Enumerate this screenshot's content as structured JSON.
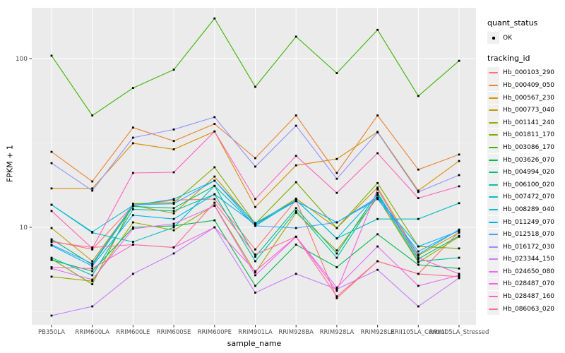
{
  "panel": {
    "background": "#EBEBEB",
    "gridline_color": "#FFFFFF",
    "tick_color": "#333333",
    "tick_label_color": "#4D4D4D"
  },
  "legend": {
    "quant_status_title": "quant_status",
    "quant_status_items": [
      {
        "label": "OK"
      }
    ],
    "tracking_id_title": "tracking_id"
  },
  "chart_data": {
    "type": "line",
    "title": "",
    "xlabel": "sample_name",
    "ylabel": "FPKM + 1",
    "y_scale": "log10",
    "ylim": [
      2.65,
      200
    ],
    "grid": true,
    "legend_position": "right",
    "point_color": "#000000",
    "point_shape": "square",
    "y_major_ticks": [
      100,
      10
    ],
    "y_tick_labels": [
      "100",
      "10"
    ],
    "y_minor_gridlines": [
      31.623,
      3.162
    ],
    "x_categories": [
      "PB350LA",
      "RRIM600LA",
      "RRIM600LE",
      "RRIM600SE",
      "RRIM600PE",
      "RRIM901LA",
      "RRIM928BA",
      "RRIM928LA",
      "RRIM928LE",
      "RRII105LA_Control",
      "RRII105LA_Stressed"
    ],
    "series": [
      {
        "name": "Hb_000103_290",
        "color": "#F8766D",
        "values": [
          8.3,
          7.4,
          13.5,
          14.5,
          14.7,
          7.4,
          14.5,
          3.8,
          6.3,
          5.3,
          9.4
        ]
      },
      {
        "name": "Hb_000409_050",
        "color": "#EA8331",
        "values": [
          28,
          18.7,
          39,
          32.5,
          41,
          25.7,
          46,
          21,
          46,
          22,
          27
        ]
      },
      {
        "name": "Hb_000567_230",
        "color": "#D89000",
        "values": [
          17,
          17,
          31.5,
          29,
          37,
          13.2,
          23.3,
          25.4,
          36.8,
          16.5,
          24.7
        ]
      },
      {
        "name": "Hb_000773_040",
        "color": "#C09B00",
        "values": [
          9.9,
          6.3,
          13.5,
          12.1,
          20,
          10.4,
          14.8,
          9.9,
          17.2,
          6.8,
          9.3
        ]
      },
      {
        "name": "Hb_001141_240",
        "color": "#A3A500",
        "values": [
          5.1,
          4.8,
          10.7,
          9.6,
          13.5,
          5.4,
          12.2,
          7.3,
          15.0,
          6.2,
          8.8
        ]
      },
      {
        "name": "Hb_001811_170",
        "color": "#7CAE00",
        "values": [
          6.5,
          4.6,
          13.8,
          14.0,
          22.7,
          10.5,
          18.5,
          9.9,
          18.3,
          7.7,
          7.5
        ]
      },
      {
        "name": "Hb_003086_170",
        "color": "#39B600",
        "values": [
          104,
          46,
          67,
          86,
          173,
          68,
          135,
          82,
          148,
          60,
          97
        ]
      },
      {
        "name": "Hb_003626_070",
        "color": "#00BB4E",
        "values": [
          6.4,
          5.5,
          10.0,
          10.2,
          11.0,
          4.5,
          7.9,
          5.8,
          9.1,
          6.0,
          5.7
        ]
      },
      {
        "name": "Hb_004994_020",
        "color": "#00BF7D",
        "values": [
          8.5,
          6.0,
          13.3,
          13.0,
          17.6,
          6.7,
          13.0,
          7.0,
          16.0,
          6.5,
          8.9
        ]
      },
      {
        "name": "Hb_006100_020",
        "color": "#00C1A3",
        "values": [
          6.6,
          5.2,
          12.8,
          12.5,
          15.7,
          6.3,
          12.5,
          6.6,
          15.5,
          6.3,
          6.6
        ]
      },
      {
        "name": "Hb_007472_070",
        "color": "#00BFC4",
        "values": [
          13.6,
          9.3,
          8.2,
          10.0,
          17.6,
          10.2,
          14.5,
          8.6,
          11.2,
          11.2,
          13.9
        ]
      },
      {
        "name": "Hb_008289_040",
        "color": "#00BBDA",
        "values": [
          13.6,
          9.4,
          13.5,
          14.7,
          18.9,
          10.6,
          14.5,
          8.6,
          15.7,
          6.9,
          9.7
        ]
      },
      {
        "name": "Hb_011249_070",
        "color": "#00B0F6",
        "values": [
          7.8,
          5.9,
          11.8,
          11.2,
          15.7,
          10.4,
          14.3,
          10.7,
          15.0,
          7.7,
          9.5
        ]
      },
      {
        "name": "Hb_012518_070",
        "color": "#35A2FF",
        "values": [
          7.9,
          6.1,
          13.6,
          13.8,
          18.9,
          10.2,
          9.9,
          10.7,
          14.7,
          7.2,
          9.6
        ]
      },
      {
        "name": "Hb_016172_030",
        "color": "#9590FF",
        "values": [
          24,
          16.5,
          34,
          38,
          45,
          22.9,
          40,
          19.4,
          36.5,
          16.2,
          20.4
        ]
      },
      {
        "name": "Hb_023344_150",
        "color": "#C77CFF",
        "values": [
          3.0,
          3.4,
          5.3,
          7.0,
          10.0,
          4.1,
          5.3,
          4.3,
          5.6,
          3.4,
          5.0
        ]
      },
      {
        "name": "Hb_024650_080",
        "color": "#E76BF3",
        "values": [
          5.7,
          4.9,
          9.8,
          10.5,
          13.4,
          5.2,
          8.8,
          4.4,
          7.7,
          4.5,
          5.2
        ]
      },
      {
        "name": "Hb_028487_070",
        "color": "#FA62DB",
        "values": [
          5.8,
          5.7,
          7.9,
          7.6,
          10.0,
          5.5,
          8.8,
          4.2,
          16.8,
          6.6,
          5.3
        ]
      },
      {
        "name": "Hb_028487_160",
        "color": "#FF62BC",
        "values": [
          12.5,
          7.5,
          21,
          21.2,
          37,
          14.7,
          26.5,
          16,
          27.5,
          14.9,
          17.5
        ]
      },
      {
        "name": "Hb_086063_020",
        "color": "#FF6A98",
        "values": [
          8.2,
          7.6,
          7.9,
          7.6,
          14.0,
          6.9,
          8.8,
          3.9,
          6.3,
          5.3,
          5.1
        ]
      }
    ]
  }
}
